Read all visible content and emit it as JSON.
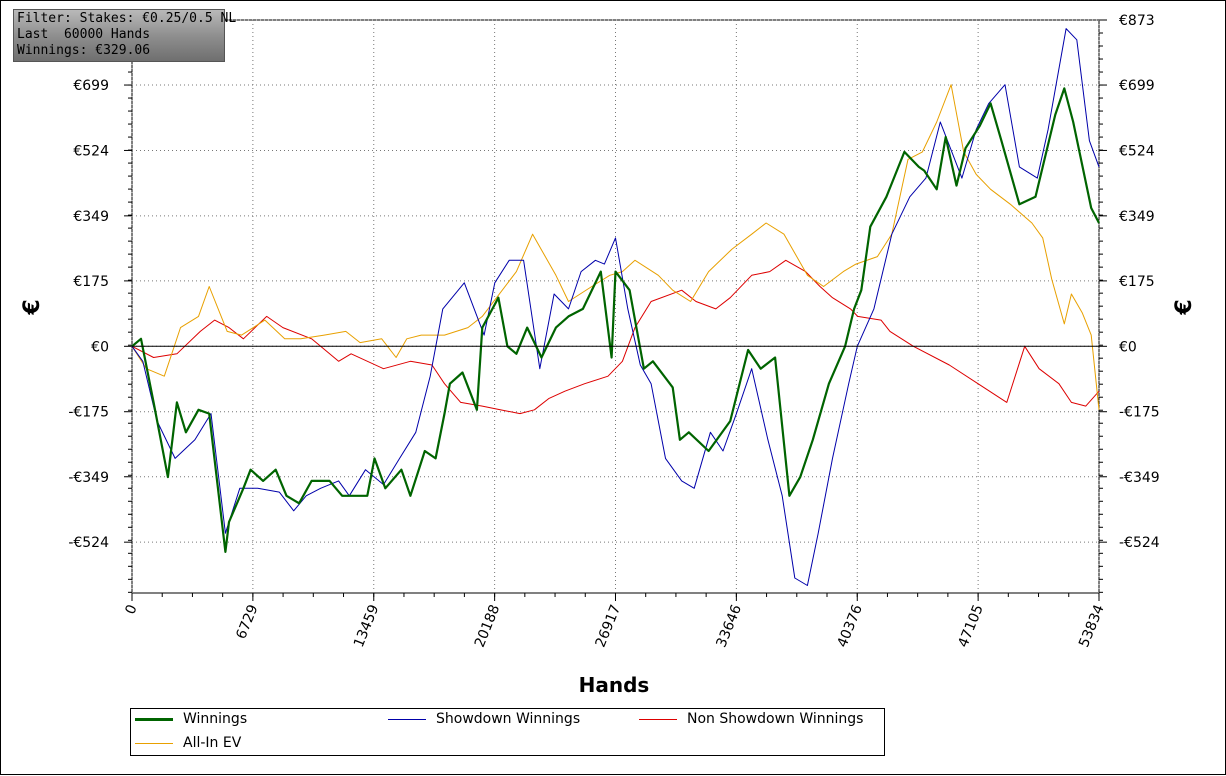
{
  "filter": {
    "line1": "Filter: Stakes: €0.25/0.5 NL",
    "line2": "Last  60000 Hands",
    "line3": "Winnings: €329.06"
  },
  "chart_data": {
    "type": "line",
    "xlabel": "Hands",
    "ylabel": "€",
    "xlim": [
      0,
      53834
    ],
    "ylim": [
      -660,
      873
    ],
    "x_ticks": [
      0,
      6729,
      13459,
      20188,
      26917,
      33646,
      40376,
      47105,
      53834
    ],
    "y_ticks": [
      873,
      699,
      524,
      349,
      175,
      0,
      -175,
      -349,
      -524
    ],
    "y_tick_labels": [
      "€873",
      "€699",
      "€524",
      "€349",
      "€175",
      "€0",
      "-€175",
      "-€349",
      "-€524"
    ],
    "grid": true,
    "legend_position": "bottom",
    "series": [
      {
        "name": "Winnings",
        "color": "#006400",
        "x": [
          0,
          500,
          1200,
          2000,
          2500,
          3000,
          3700,
          4300,
          5200,
          5400,
          6200,
          6600,
          7300,
          8000,
          8600,
          9300,
          10000,
          11000,
          11700,
          12500,
          13100,
          13500,
          14100,
          15000,
          15500,
          16300,
          16900,
          17400,
          17700,
          18400,
          19200,
          19500,
          20400,
          20900,
          21400,
          22000,
          22800,
          23600,
          24300,
          25100,
          26100,
          26700,
          26917,
          27700,
          28500,
          29000,
          30100,
          30500,
          31000,
          32100,
          33300,
          34300,
          35000,
          35800,
          36600,
          37200,
          37900,
          38800,
          39700,
          40200,
          40600,
          41100,
          42000,
          43000,
          43800,
          44100,
          44800,
          45300,
          45900,
          46400,
          47200,
          47800,
          48400,
          49400,
          50300,
          50800,
          51400,
          51900,
          52400,
          53400,
          53834
        ],
        "y": [
          0,
          20,
          -150,
          -350,
          -150,
          -230,
          -170,
          -180,
          -550,
          -470,
          -380,
          -330,
          -360,
          -330,
          -400,
          -420,
          -360,
          -360,
          -400,
          -400,
          -400,
          -300,
          -380,
          -330,
          -400,
          -280,
          -300,
          -180,
          -100,
          -70,
          -170,
          50,
          130,
          0,
          -20,
          50,
          -30,
          50,
          80,
          100,
          200,
          -30,
          200,
          150,
          -60,
          -40,
          -110,
          -250,
          -230,
          -280,
          -200,
          -10,
          -60,
          -30,
          -400,
          -350,
          -250,
          -100,
          0,
          100,
          150,
          320,
          400,
          520,
          480,
          470,
          420,
          560,
          430,
          530,
          590,
          650,
          550,
          380,
          400,
          500,
          620,
          690,
          600,
          370,
          330
        ]
      },
      {
        "name": "Showdown Winnings",
        "color": "#0000aa",
        "x": [
          0,
          600,
          1400,
          2400,
          3500,
          4400,
          5200,
          6000,
          7000,
          8200,
          9000,
          9700,
          10500,
          11500,
          12100,
          13000,
          14000,
          14900,
          15800,
          16600,
          17300,
          18500,
          19600,
          20200,
          21000,
          21800,
          22700,
          23500,
          24300,
          25000,
          25800,
          26300,
          26917,
          27600,
          28300,
          28900,
          29700,
          30600,
          31300,
          32200,
          32900,
          33646,
          34500,
          35400,
          36200,
          36900,
          37600,
          38200,
          39000,
          39900,
          40376,
          41300,
          42300,
          43300,
          44200,
          45000,
          46200,
          47000,
          47700,
          48600,
          49400,
          50400,
          51000,
          52000,
          52600,
          53300,
          53834
        ],
        "y": [
          0,
          -40,
          -200,
          -300,
          -250,
          -180,
          -500,
          -380,
          -380,
          -390,
          -440,
          -400,
          -380,
          -360,
          -400,
          -330,
          -370,
          -300,
          -230,
          -80,
          100,
          170,
          30,
          170,
          230,
          230,
          -60,
          140,
          100,
          200,
          230,
          220,
          290,
          100,
          -50,
          -100,
          -300,
          -360,
          -380,
          -230,
          -280,
          -180,
          -60,
          -250,
          -400,
          -620,
          -640,
          -500,
          -300,
          -100,
          0,
          100,
          300,
          400,
          450,
          600,
          450,
          580,
          650,
          700,
          480,
          450,
          580,
          850,
          820,
          550,
          480
        ]
      },
      {
        "name": "Non Showdown Winnings",
        "color": "#dd0000",
        "x": [
          0,
          1200,
          2500,
          3800,
          4600,
          5400,
          6200,
          7500,
          8400,
          10000,
          11500,
          12200,
          14000,
          15500,
          16700,
          17400,
          18300,
          19500,
          20500,
          21600,
          22400,
          23200,
          24100,
          25200,
          26500,
          27300,
          28000,
          28900,
          30600,
          31400,
          32500,
          33300,
          34500,
          35500,
          36400,
          37500,
          38300,
          39000,
          40000,
          40400,
          41700,
          42200,
          43500,
          45500,
          47100,
          48700,
          49700,
          50500,
          51600,
          52300,
          53100,
          53834
        ],
        "y": [
          0,
          -30,
          -20,
          40,
          70,
          50,
          20,
          80,
          50,
          20,
          -40,
          -20,
          -60,
          -40,
          -50,
          -100,
          -150,
          -160,
          -170,
          -180,
          -170,
          -140,
          -120,
          -100,
          -80,
          -40,
          50,
          120,
          150,
          120,
          100,
          130,
          190,
          200,
          230,
          200,
          160,
          130,
          100,
          80,
          70,
          40,
          0,
          -50,
          -100,
          -150,
          0,
          -60,
          -100,
          -150,
          -160,
          -120
        ]
      },
      {
        "name": "All-In EV",
        "color": "#e8a000",
        "x": [
          0,
          800,
          1800,
          2700,
          3700,
          4300,
          5300,
          6100,
          7400,
          8500,
          9400,
          10700,
          11900,
          12700,
          13900,
          14700,
          15300,
          16100,
          17400,
          18700,
          19500,
          21400,
          22300,
          23600,
          24300,
          25600,
          26600,
          27300,
          28000,
          29300,
          30100,
          31100,
          32100,
          33400,
          34500,
          35300,
          36300,
          37600,
          38500,
          39600,
          40300,
          41500,
          42300,
          43200,
          44000,
          44800,
          45600,
          46300,
          47000,
          47800,
          48900,
          50100,
          50700,
          51200,
          51900,
          52300,
          52900,
          53400,
          53834
        ],
        "y": [
          0,
          -60,
          -80,
          50,
          80,
          160,
          40,
          30,
          70,
          20,
          20,
          30,
          40,
          10,
          20,
          -30,
          20,
          30,
          30,
          50,
          80,
          200,
          300,
          190,
          120,
          160,
          190,
          200,
          230,
          190,
          150,
          120,
          200,
          260,
          300,
          330,
          300,
          190,
          160,
          200,
          220,
          240,
          300,
          500,
          520,
          600,
          700,
          520,
          460,
          420,
          380,
          330,
          290,
          180,
          60,
          140,
          90,
          30,
          -170
        ]
      }
    ]
  },
  "legend": {
    "winnings": "Winnings",
    "showdown": "Showdown Winnings",
    "non_showdown": "Non Showdown Winnings",
    "allin": "All-In EV"
  }
}
